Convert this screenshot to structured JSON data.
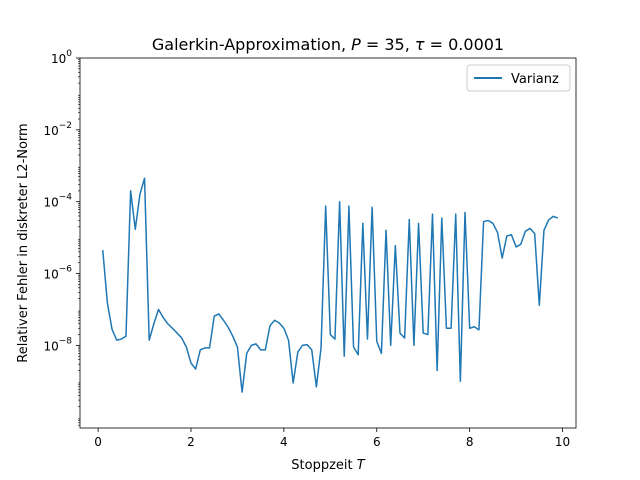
{
  "chart_data": {
    "type": "line",
    "title": "Galerkin-Approximation, P = 35, τ = 0.0001",
    "title_parts": {
      "text": "Galerkin-Approximation, ",
      "p_symbol": "P",
      "p_eq": " = 35, ",
      "tau_symbol": "τ",
      "tau_eq": " = 0.0001"
    },
    "xlabel": "Stoppzeit T",
    "xlabel_parts": {
      "text": "Stoppzeit ",
      "var": "T"
    },
    "ylabel": "Relativer Fehler in diskreter L2-Norm",
    "xlim": [
      -0.39,
      10.29
    ],
    "ylim_log10": [
      -10.3,
      0
    ],
    "y_scale": "log",
    "x_ticks": [
      0,
      2,
      4,
      6,
      8,
      10
    ],
    "y_ticks": [
      {
        "base": "10",
        "exp": "0",
        "log10": 0
      },
      {
        "base": "10",
        "exp": "−2",
        "log10": -2
      },
      {
        "base": "10",
        "exp": "−4",
        "log10": -4
      },
      {
        "base": "10",
        "exp": "−6",
        "log10": -6
      },
      {
        "base": "10",
        "exp": "−8",
        "log10": -8
      }
    ],
    "grid": false,
    "legend_position": "top-right",
    "series": [
      {
        "name": "Varianz",
        "color": "#1f77b4",
        "x": [
          0.1,
          0.2,
          0.3,
          0.4,
          0.5,
          0.6,
          0.7,
          0.8,
          0.9,
          1.0,
          1.1,
          1.2,
          1.3,
          1.4,
          1.5,
          1.6,
          1.7,
          1.8,
          1.9,
          2.0,
          2.1,
          2.2,
          2.3,
          2.4,
          2.5,
          2.6,
          2.7,
          2.8,
          2.9,
          3.0,
          3.1,
          3.2,
          3.3,
          3.4,
          3.5,
          3.6,
          3.7,
          3.8,
          3.9,
          4.0,
          4.1,
          4.2,
          4.3,
          4.4,
          4.5,
          4.6,
          4.7,
          4.8,
          4.9,
          5.0,
          5.1,
          5.2,
          5.3,
          5.4,
          5.5,
          5.6,
          5.7,
          5.8,
          5.9,
          6.0,
          6.1,
          6.2,
          6.3,
          6.4,
          6.5,
          6.6,
          6.7,
          6.8,
          6.9,
          7.0,
          7.1,
          7.2,
          7.3,
          7.4,
          7.5,
          7.6,
          7.7,
          7.8,
          7.9,
          8.0,
          8.1,
          8.2,
          8.3,
          8.4,
          8.5,
          8.6,
          8.7,
          8.8,
          8.9,
          9.0,
          9.1,
          9.2,
          9.3,
          9.4,
          9.5,
          9.6,
          9.7,
          9.8,
          9.9
        ],
        "y": [
          4.5e-06,
          1.5e-07,
          2.8e-08,
          1.4e-08,
          1.5e-08,
          1.8e-08,
          0.0002,
          1.7e-05,
          0.00016,
          0.00045,
          1.4e-08,
          4e-08,
          1e-07,
          6e-08,
          4e-08,
          3e-08,
          2.2e-08,
          1.6e-08,
          9e-09,
          3.2e-09,
          2.2e-09,
          7.5e-09,
          8.5e-09,
          8.5e-09,
          6.5e-08,
          7.5e-08,
          5e-08,
          3.2e-08,
          1.8e-08,
          9e-09,
          5e-10,
          6e-09,
          1e-08,
          1.1e-08,
          7.5e-09,
          7.5e-09,
          3.5e-08,
          5e-08,
          4.2e-08,
          3e-08,
          1.4e-08,
          9e-10,
          6.5e-09,
          1e-08,
          1.05e-08,
          7.5e-09,
          7e-10,
          8.5e-09,
          7.5e-05,
          2e-08,
          1.5e-08,
          0.0001,
          5e-09,
          7.5e-05,
          9e-09,
          5.5e-09,
          2.5e-05,
          1.5e-08,
          7e-05,
          1.3e-08,
          6e-09,
          1.6e-05,
          1e-08,
          6e-06,
          2.2e-08,
          1.6e-08,
          3.2e-05,
          1e-08,
          2.5e-05,
          2.2e-08,
          2e-08,
          4.5e-05,
          2e-09,
          3.5e-05,
          3e-08,
          3e-08,
          4.5e-05,
          1e-09,
          5e-05,
          3e-08,
          3.3e-08,
          2.7e-08,
          2.8e-05,
          3e-05,
          2.5e-05,
          1.4e-05,
          2.7e-06,
          1.1e-05,
          1.2e-05,
          5.5e-06,
          6.5e-06,
          1.5e-05,
          1.8e-05,
          1.3e-05,
          1.3e-07,
          1.6e-05,
          3.1e-05,
          3.9e-05,
          3.5e-05
        ]
      }
    ]
  }
}
